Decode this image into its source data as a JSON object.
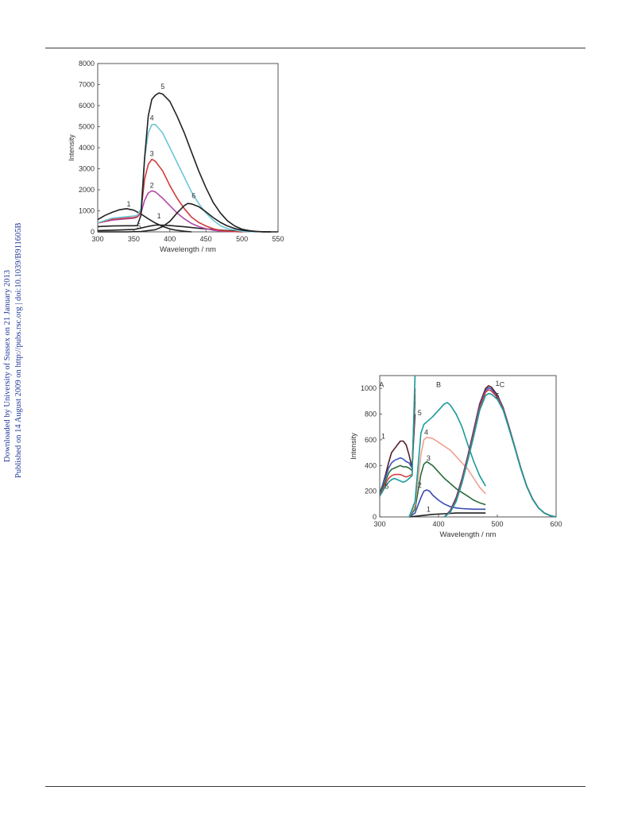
{
  "sidebar": {
    "line1": "Downloaded by University of Sussex on 21 January 2013",
    "line2": "Published on 14 August 2009 on http://pubs.rsc.org | doi:10.1039/B911605B",
    "color": "#1f3a99"
  },
  "chart_data": [
    {
      "type": "line",
      "xlabel": "Wavelength / nm",
      "ylabel": "Intensity",
      "xlim": [
        300,
        550
      ],
      "ylim": [
        0,
        8000
      ],
      "xticks": [
        300,
        350,
        400,
        450,
        500,
        550
      ],
      "yticks": [
        0,
        1000,
        2000,
        3000,
        4000,
        5000,
        6000,
        7000,
        8000
      ],
      "grid": false,
      "series": [
        {
          "name": "1",
          "color": "#222222",
          "x": [
            300,
            310,
            320,
            330,
            340,
            350,
            360,
            370,
            380,
            390,
            400,
            410,
            420,
            430
          ],
          "y": [
            580,
            780,
            930,
            1050,
            1100,
            1030,
            850,
            620,
            420,
            260,
            140,
            70,
            30,
            0
          ]
        },
        {
          "name": "1",
          "color": "#222222",
          "x": [
            300,
            320,
            340,
            350,
            360,
            370,
            380,
            390,
            400,
            420,
            440,
            460,
            480,
            500,
            520,
            540,
            550
          ],
          "y": [
            60,
            80,
            100,
            110,
            180,
            260,
            320,
            320,
            300,
            240,
            170,
            110,
            60,
            30,
            10,
            0,
            0
          ]
        },
        {
          "name": "2",
          "color": "#b04aa8",
          "x": [
            300,
            320,
            340,
            350,
            355,
            360,
            365,
            370,
            375,
            380,
            390,
            400,
            410,
            420,
            430,
            440,
            450,
            460,
            470,
            480,
            500
          ],
          "y": [
            420,
            560,
            620,
            650,
            700,
            900,
            1500,
            1850,
            1950,
            1900,
            1600,
            1250,
            900,
            620,
            400,
            250,
            150,
            80,
            40,
            20,
            0
          ]
        },
        {
          "name": "3",
          "color": "#d03a3a",
          "x": [
            300,
            320,
            340,
            350,
            355,
            360,
            365,
            370,
            375,
            380,
            390,
            400,
            410,
            420,
            430,
            440,
            450,
            460,
            470,
            480,
            500
          ],
          "y": [
            420,
            600,
            660,
            680,
            720,
            1000,
            2500,
            3200,
            3450,
            3350,
            2900,
            2200,
            1600,
            1100,
            700,
            450,
            280,
            150,
            70,
            30,
            0
          ]
        },
        {
          "name": "4",
          "color": "#6cc6d8",
          "x": [
            300,
            320,
            340,
            350,
            355,
            360,
            365,
            370,
            375,
            380,
            390,
            400,
            410,
            420,
            430,
            440,
            450,
            460,
            470,
            480,
            500,
            520
          ],
          "y": [
            430,
            650,
            720,
            750,
            780,
            1100,
            3500,
            4700,
            5100,
            5100,
            4700,
            4000,
            3300,
            2600,
            1900,
            1350,
            900,
            550,
            300,
            150,
            30,
            0
          ]
        },
        {
          "name": "5",
          "color": "#222222",
          "x": [
            300,
            320,
            340,
            350,
            355,
            360,
            365,
            370,
            375,
            380,
            385,
            390,
            400,
            410,
            420,
            430,
            440,
            450,
            460,
            470,
            480,
            490,
            500,
            510,
            520,
            530,
            540
          ],
          "y": [
            250,
            280,
            290,
            290,
            300,
            800,
            3500,
            5500,
            6300,
            6500,
            6600,
            6550,
            6200,
            5500,
            4700,
            3800,
            2900,
            2100,
            1400,
            900,
            520,
            280,
            130,
            60,
            20,
            5,
            0
          ]
        },
        {
          "name": "6",
          "color": "#222222",
          "x": [
            300,
            340,
            360,
            380,
            390,
            400,
            410,
            420,
            425,
            430,
            440,
            450,
            460,
            470,
            480,
            490,
            500,
            510,
            520,
            530,
            540
          ],
          "y": [
            0,
            0,
            20,
            100,
            250,
            500,
            900,
            1250,
            1350,
            1330,
            1200,
            950,
            680,
            450,
            280,
            160,
            80,
            40,
            15,
            5,
            0
          ]
        }
      ],
      "labels": [
        {
          "text": "5",
          "x": 390,
          "y": 6800
        },
        {
          "text": "4",
          "x": 375,
          "y": 5300
        },
        {
          "text": "3",
          "x": 375,
          "y": 3600
        },
        {
          "text": "2",
          "x": 375,
          "y": 2100
        },
        {
          "text": "1",
          "x": 343,
          "y": 1200
        },
        {
          "text": "1",
          "x": 385,
          "y": 650
        },
        {
          "text": "6",
          "x": 433,
          "y": 1600
        },
        {
          "text": "5",
          "x": 357,
          "y": 150
        }
      ]
    },
    {
      "type": "line",
      "xlabel": "Wavelength / nm",
      "ylabel": "Intensity",
      "xlim": [
        300,
        600
      ],
      "ylim": [
        0,
        1100
      ],
      "xticks": [
        300,
        400,
        500,
        600
      ],
      "yticks": [
        0,
        200,
        400,
        600,
        800,
        1000
      ],
      "grid": false,
      "series": [
        {
          "name": "A1",
          "color": "#5a1c28",
          "x": [
            300,
            305,
            310,
            315,
            320,
            325,
            330,
            335,
            340,
            345,
            350,
            355,
            360
          ],
          "y": [
            170,
            250,
            330,
            420,
            500,
            530,
            560,
            590,
            590,
            560,
            480,
            380,
            800
          ]
        },
        {
          "name": "A2",
          "color": "#3a55b8",
          "x": [
            300,
            305,
            310,
            315,
            320,
            325,
            330,
            335,
            340,
            345,
            350,
            355,
            360
          ],
          "y": [
            190,
            250,
            310,
            380,
            420,
            440,
            450,
            460,
            450,
            430,
            420,
            380,
            900
          ]
        },
        {
          "name": "A3",
          "color": "#2a6a3a",
          "x": [
            300,
            305,
            310,
            315,
            320,
            325,
            330,
            335,
            340,
            345,
            350,
            355,
            360
          ],
          "y": [
            180,
            230,
            280,
            340,
            370,
            380,
            390,
            400,
            390,
            390,
            380,
            360,
            950
          ]
        },
        {
          "name": "A4",
          "color": "#d04040",
          "x": [
            300,
            305,
            310,
            315,
            320,
            325,
            330,
            335,
            340,
            345,
            350,
            355,
            360
          ],
          "y": [
            170,
            210,
            260,
            300,
            320,
            330,
            330,
            330,
            320,
            310,
            320,
            330,
            1000
          ]
        },
        {
          "name": "A5",
          "color": "#1a9a9a",
          "x": [
            300,
            305,
            310,
            315,
            320,
            325,
            330,
            335,
            340,
            345,
            350,
            355,
            360
          ],
          "y": [
            160,
            200,
            240,
            270,
            290,
            300,
            290,
            280,
            270,
            280,
            300,
            320,
            1100
          ]
        },
        {
          "name": "B1",
          "color": "#222222",
          "x": [
            350,
            370,
            390,
            410,
            430,
            450,
            470,
            480
          ],
          "y": [
            0,
            10,
            20,
            25,
            30,
            30,
            30,
            30
          ]
        },
        {
          "name": "B2",
          "color": "#3a4ab0",
          "x": [
            350,
            360,
            370,
            375,
            380,
            385,
            390,
            400,
            410,
            420,
            430,
            440,
            460,
            480
          ],
          "y": [
            0,
            30,
            150,
            200,
            210,
            200,
            170,
            130,
            100,
            80,
            70,
            65,
            60,
            60
          ]
        },
        {
          "name": "B3",
          "color": "#2a6a3a",
          "x": [
            350,
            360,
            370,
            375,
            380,
            390,
            400,
            410,
            420,
            430,
            440,
            450,
            460,
            470,
            480
          ],
          "y": [
            0,
            60,
            330,
            410,
            430,
            400,
            350,
            300,
            260,
            220,
            190,
            160,
            130,
            110,
            95
          ]
        },
        {
          "name": "B4",
          "color": "#f0a090",
          "x": [
            350,
            360,
            370,
            375,
            380,
            390,
            400,
            410,
            420,
            430,
            440,
            450,
            460,
            470,
            480
          ],
          "y": [
            0,
            90,
            480,
            600,
            620,
            610,
            580,
            550,
            520,
            470,
            420,
            370,
            300,
            230,
            180
          ]
        },
        {
          "name": "B5",
          "color": "#1a9a9a",
          "x": [
            350,
            360,
            370,
            375,
            380,
            390,
            400,
            410,
            415,
            420,
            430,
            440,
            450,
            460,
            470,
            480
          ],
          "y": [
            0,
            120,
            650,
            720,
            740,
            780,
            830,
            880,
            890,
            870,
            800,
            700,
            560,
            430,
            320,
            240
          ]
        },
        {
          "name": "C1",
          "color": "#5a1c28",
          "x": [
            410,
            420,
            430,
            440,
            450,
            460,
            470,
            480,
            485,
            490,
            500,
            510,
            520,
            530,
            540,
            550,
            560,
            570,
            580,
            590,
            600
          ],
          "y": [
            0,
            50,
            150,
            300,
            480,
            680,
            880,
            1000,
            1020,
            1010,
            950,
            850,
            700,
            540,
            380,
            240,
            140,
            70,
            30,
            10,
            0
          ]
        },
        {
          "name": "C2",
          "color": "#3a55b8",
          "x": [
            410,
            420,
            430,
            440,
            450,
            460,
            470,
            480,
            485,
            490,
            500,
            510,
            520,
            530,
            540,
            550,
            560,
            570,
            580,
            590,
            600
          ],
          "y": [
            0,
            45,
            140,
            290,
            470,
            665,
            865,
            985,
            1005,
            995,
            940,
            845,
            695,
            537,
            378,
            239,
            139,
            70,
            30,
            10,
            0
          ]
        },
        {
          "name": "C3",
          "color": "#d04040",
          "x": [
            410,
            420,
            430,
            440,
            450,
            460,
            470,
            480,
            485,
            490,
            500,
            510,
            520,
            530,
            540,
            550,
            560,
            570,
            580,
            590,
            600
          ],
          "y": [
            0,
            40,
            130,
            280,
            460,
            650,
            850,
            970,
            990,
            980,
            930,
            838,
            690,
            535,
            376,
            238,
            138,
            70,
            30,
            10,
            0
          ]
        },
        {
          "name": "C5",
          "color": "#1a9a9a",
          "x": [
            410,
            420,
            430,
            440,
            450,
            460,
            470,
            480,
            485,
            490,
            500,
            510,
            520,
            530,
            540,
            550,
            560,
            570,
            580,
            590,
            600
          ],
          "y": [
            0,
            35,
            120,
            265,
            445,
            630,
            830,
            945,
            960,
            955,
            915,
            830,
            685,
            532,
            374,
            237,
            137,
            70,
            30,
            10,
            0
          ]
        }
      ],
      "labels": [
        {
          "text": "A",
          "x": 303,
          "y": 1010
        },
        {
          "text": "B",
          "x": 400,
          "y": 1010
        },
        {
          "text": "C",
          "x": 508,
          "y": 1010
        },
        {
          "text": "1",
          "x": 500,
          "y": 1020
        },
        {
          "text": "5",
          "x": 500,
          "y": 925
        },
        {
          "text": "5",
          "x": 368,
          "y": 790
        },
        {
          "text": "4",
          "x": 379,
          "y": 640
        },
        {
          "text": "3",
          "x": 383,
          "y": 440
        },
        {
          "text": "2",
          "x": 368,
          "y": 230
        },
        {
          "text": "1",
          "x": 383,
          "y": 40
        },
        {
          "text": "1",
          "x": 306,
          "y": 610
        },
        {
          "text": "5",
          "x": 312,
          "y": 220
        }
      ]
    }
  ]
}
